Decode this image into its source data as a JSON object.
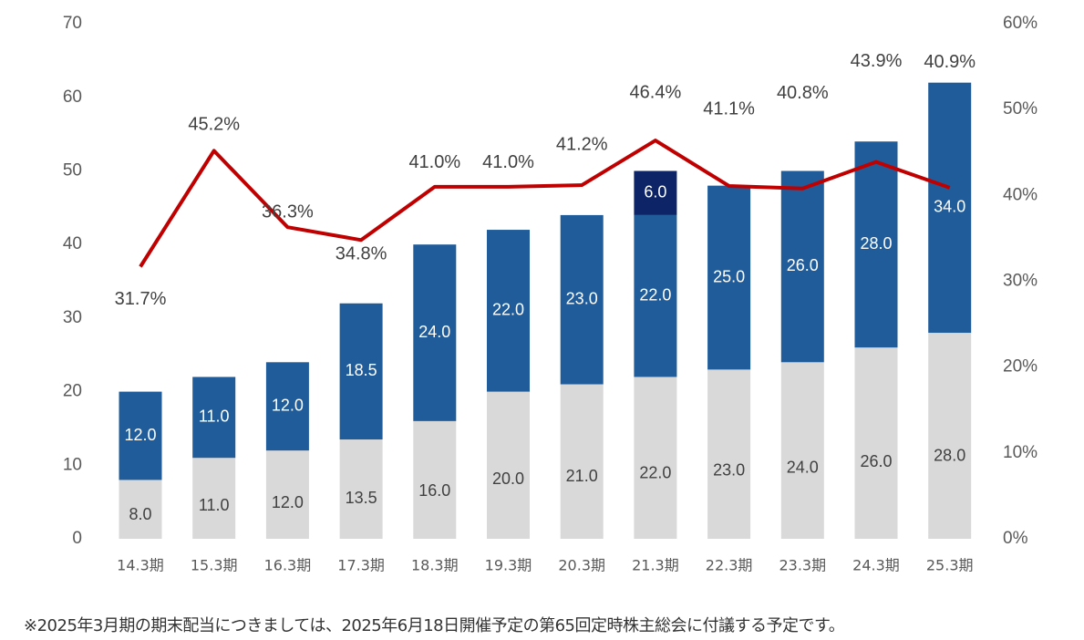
{
  "chart_data": {
    "type": "bar",
    "stacked": true,
    "categories": [
      "14.3期",
      "15.3期",
      "16.3期",
      "17.3期",
      "18.3期",
      "19.3期",
      "20.3期",
      "21.3期",
      "22.3期",
      "23.3期",
      "24.3期",
      "25.3期"
    ],
    "series": [
      {
        "values": [
          8.0,
          11.0,
          12.0,
          13.5,
          16.0,
          20.0,
          21.0,
          22.0,
          23.0,
          24.0,
          26.0,
          28.0
        ],
        "labels": [
          "8.0",
          "11.0",
          "12.0",
          "13.5",
          "16.0",
          "20.0",
          "21.0",
          "22.0",
          "23.0",
          "24.0",
          "26.0",
          "28.0"
        ],
        "color": "#d9d9d9"
      },
      {
        "values": [
          12.0,
          11.0,
          12.0,
          18.5,
          24.0,
          22.0,
          23.0,
          22.0,
          25.0,
          26.0,
          28.0,
          34.0
        ],
        "labels": [
          "12.0",
          "11.0",
          "12.0",
          "18.5",
          "24.0",
          "22.0",
          "23.0",
          "22.0",
          "25.0",
          "26.0",
          "28.0",
          "34.0"
        ],
        "color": "#1f5c99"
      },
      {
        "values": [
          0,
          0,
          0,
          0,
          0,
          0,
          0,
          6.0,
          0,
          0,
          0,
          0
        ],
        "labels": [
          "",
          "",
          "",
          "",
          "",
          "",
          "",
          "6.0",
          "",
          "",
          "",
          ""
        ],
        "color": "#0d2566"
      }
    ],
    "line": {
      "type": "line",
      "axis": "right",
      "values": [
        31.7,
        45.2,
        36.3,
        34.8,
        41.0,
        41.0,
        41.2,
        46.4,
        41.1,
        40.8,
        43.9,
        40.9
      ],
      "labels": [
        "31.7%",
        "45.2%",
        "36.3%",
        "34.8%",
        "41.0%",
        "41.0%",
        "41.2%",
        "46.4%",
        "41.1%",
        "40.8%",
        "43.9%",
        "40.9%"
      ],
      "color": "#c00000"
    },
    "left_axis": {
      "ylim": [
        0,
        70
      ],
      "ticks": [
        "0",
        "10",
        "20",
        "30",
        "40",
        "50",
        "60",
        "70"
      ]
    },
    "right_axis": {
      "ylim": [
        0,
        60
      ],
      "ticks": [
        "0%",
        "10%",
        "20%",
        "30%",
        "40%",
        "50%",
        "60%"
      ]
    },
    "grid": false,
    "legend": "none"
  },
  "footnote": "※2025年3月期の期末配当につきましては、2025年6月18日開催予定の第65回定時株主総会に付議する予定です。"
}
